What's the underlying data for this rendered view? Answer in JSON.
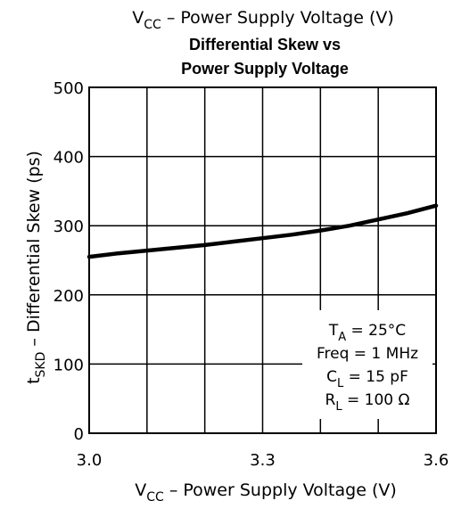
{
  "chart_data": {
    "type": "line",
    "top_label": {
      "prefix": "V",
      "sub": "CC",
      "text": " – Power Supply Voltage (V)"
    },
    "title_lines": [
      "Differential Skew vs",
      "Power Supply Voltage"
    ],
    "xlabel": {
      "prefix": "V",
      "sub": "CC",
      "text": " – Power Supply Voltage (V)"
    },
    "ylabel": {
      "prefix": "t",
      "sub": "SKD",
      "text": " – Differential Skew (ps)"
    },
    "xlim": [
      3.0,
      3.6
    ],
    "ylim": [
      0,
      500
    ],
    "x_ticks": [
      3.0,
      3.3,
      3.6
    ],
    "x_tick_labels": [
      "3.0",
      "3.3",
      "3.6"
    ],
    "x_grid": [
      3.0,
      3.1,
      3.2,
      3.3,
      3.4,
      3.5,
      3.6
    ],
    "y_ticks": [
      0,
      100,
      200,
      300,
      400,
      500
    ],
    "y_tick_labels": [
      "0",
      "100",
      "200",
      "300",
      "400",
      "500"
    ],
    "grid": true,
    "series": [
      {
        "x": [
          3.0,
          3.05,
          3.1,
          3.15,
          3.2,
          3.25,
          3.3,
          3.35,
          3.4,
          3.45,
          3.5,
          3.55,
          3.6
        ],
        "values": [
          255,
          260,
          264,
          268,
          272,
          277,
          282,
          287,
          293,
          300,
          309,
          318,
          329
        ]
      }
    ],
    "conditions": [
      {
        "prefix": "T",
        "sub": "A",
        "text": " = 25°C"
      },
      {
        "prefix": "Freq = 1 MHz",
        "sub": "",
        "text": ""
      },
      {
        "prefix": "C",
        "sub": "L",
        "text": " = 15 pF"
      },
      {
        "prefix": "R",
        "sub": "L",
        "text": " = 100 Ω"
      }
    ]
  }
}
